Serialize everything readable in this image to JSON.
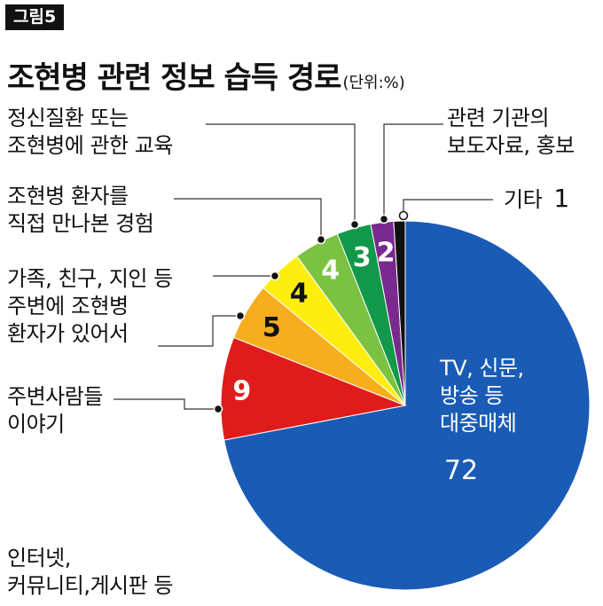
{
  "figure_tag": "그림5",
  "title": "조현병 관련 정보 습득 경로",
  "unit": "(단위:%)",
  "chart_data": {
    "type": "pie",
    "title": "조현병 관련 정보 습득 경로",
    "unit": "(단위:%)",
    "slices": [
      {
        "label": [
          "TV, 신문,",
          "방송 등",
          "대중매체"
        ],
        "value": 72,
        "display": "72",
        "color": "#1a5bb5",
        "value_color": "#ffffff"
      },
      {
        "label": [
          "인터넷,",
          "커뮤니티,게시판 등"
        ],
        "value": 9,
        "display": "9",
        "color": "#e01b1b",
        "value_color": "#ffffff"
      },
      {
        "label": [
          "주변사람들",
          "이야기"
        ],
        "value": 5,
        "display": "5",
        "color": "#f6ad1e",
        "value_color": "#111111"
      },
      {
        "label": [
          "가족, 친구, 지인 등",
          "주변에 조현병",
          "환자가 있어서"
        ],
        "value": 4,
        "display": "4",
        "color": "#fdee10",
        "value_color": "#111111"
      },
      {
        "label": [
          "조현병 환자를",
          "직접 만나본 경험"
        ],
        "value": 4,
        "display": "4",
        "color": "#7cc242",
        "value_color": "#ffffff"
      },
      {
        "label": [
          "정신질환 또는",
          "조현병에 관한 교육"
        ],
        "value": 3,
        "display": "3",
        "color": "#12984a",
        "value_color": "#ffffff"
      },
      {
        "label": [
          "관련 기관의",
          "보도자료, 홍보"
        ],
        "value": 2,
        "display": "2",
        "color": "#7a2a8e",
        "value_color": "#ffffff"
      },
      {
        "label": [
          "기타"
        ],
        "value": 1,
        "display": "1",
        "color": "#111111",
        "value_color": "#111111"
      }
    ]
  }
}
